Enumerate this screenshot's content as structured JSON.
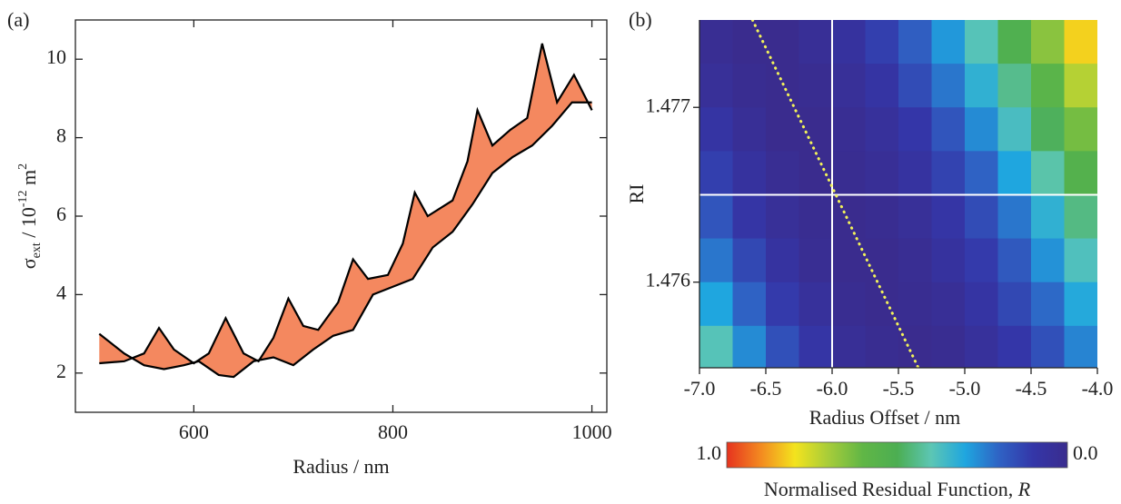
{
  "chart_data": [
    {
      "type": "line",
      "panel_label": "(a)",
      "xlabel": "Radius / nm",
      "ylabel": {
        "parts": [
          "σ",
          "ext",
          " / 10",
          "-12",
          " m",
          "2"
        ],
        "styles": [
          "normal",
          "sub",
          "normal",
          "sup",
          "normal",
          "sup"
        ]
      },
      "xlim": [
        481,
        1015
      ],
      "ylim": [
        1,
        11
      ],
      "xticks": [
        600,
        800,
        1000
      ],
      "yticks": [
        2,
        4,
        6,
        8,
        10
      ],
      "band_color": "#f0602a",
      "series": [
        {
          "color": "#000000",
          "x": [
            505,
            530,
            550,
            565,
            580,
            600,
            615,
            632,
            650,
            665,
            680,
            695,
            710,
            725,
            745,
            760,
            775,
            795,
            810,
            822,
            835,
            860,
            875,
            885,
            900,
            918,
            935,
            950,
            965,
            982,
            1000
          ],
          "values": [
            2.25,
            2.3,
            2.5,
            3.15,
            2.6,
            2.25,
            2.5,
            3.4,
            2.5,
            2.3,
            2.9,
            3.9,
            3.2,
            3.1,
            3.8,
            4.9,
            4.4,
            4.5,
            5.3,
            6.6,
            6.0,
            6.4,
            7.4,
            8.7,
            7.8,
            8.2,
            8.5,
            10.4,
            8.9,
            9.6,
            8.7
          ]
        },
        {
          "color": "#000000",
          "x": [
            505,
            530,
            550,
            570,
            590,
            605,
            625,
            640,
            660,
            680,
            700,
            720,
            740,
            760,
            780,
            800,
            820,
            840,
            860,
            880,
            900,
            920,
            940,
            960,
            980,
            1000
          ],
          "values": [
            3.0,
            2.5,
            2.2,
            2.1,
            2.2,
            2.3,
            1.95,
            1.9,
            2.3,
            2.4,
            2.2,
            2.6,
            2.95,
            3.1,
            4.0,
            4.2,
            4.4,
            5.2,
            5.6,
            6.3,
            7.1,
            7.5,
            7.8,
            8.3,
            8.9,
            8.9
          ]
        }
      ]
    },
    {
      "type": "heatmap",
      "panel_label": "(b)",
      "xlabel": "Radius Offset / nm",
      "ylabel": "RI",
      "xlim": [
        -7,
        -4
      ],
      "ylim": [
        1.47551,
        1.4775
      ],
      "xticks": [
        {
          "value": -7,
          "label": "-7.0"
        },
        {
          "value": -6.5,
          "label": "-6.5"
        },
        {
          "value": -6,
          "label": "-6.0"
        },
        {
          "value": -5.5,
          "label": "-5.5"
        },
        {
          "value": -5,
          "label": "-5.0"
        },
        {
          "value": -4.5,
          "label": "-4.5"
        },
        {
          "value": -4,
          "label": "-4.0"
        }
      ],
      "yticks": [
        1.477,
        1.476
      ],
      "x": [
        -6.875,
        -6.625,
        -6.375,
        -6.125,
        -5.875,
        -5.625,
        -5.375,
        -5.125,
        -4.875,
        -4.625,
        -4.375,
        -4.125
      ],
      "y": [
        1.477375,
        1.477125,
        1.476875,
        1.476625,
        1.476375,
        1.476125,
        1.475875,
        1.475625
      ],
      "z": [
        [
          0.02,
          0.0,
          0.0,
          0.03,
          0.06,
          0.12,
          0.19,
          0.28,
          0.39,
          0.52,
          0.66,
          0.82
        ],
        [
          0.04,
          0.01,
          0.0,
          0.01,
          0.04,
          0.08,
          0.15,
          0.23,
          0.33,
          0.44,
          0.57,
          0.72
        ],
        [
          0.08,
          0.03,
          0.0,
          0.0,
          0.02,
          0.05,
          0.1,
          0.17,
          0.26,
          0.37,
          0.49,
          0.63
        ],
        [
          0.12,
          0.06,
          0.02,
          0.0,
          0.01,
          0.03,
          0.07,
          0.13,
          0.2,
          0.3,
          0.41,
          0.54
        ],
        [
          0.17,
          0.09,
          0.04,
          0.01,
          0.0,
          0.01,
          0.04,
          0.09,
          0.15,
          0.23,
          0.33,
          0.45
        ],
        [
          0.23,
          0.14,
          0.07,
          0.02,
          0.0,
          0.0,
          0.02,
          0.06,
          0.11,
          0.18,
          0.27,
          0.38
        ],
        [
          0.3,
          0.2,
          0.11,
          0.05,
          0.01,
          0.0,
          0.01,
          0.03,
          0.08,
          0.14,
          0.21,
          0.31
        ],
        [
          0.39,
          0.26,
          0.16,
          0.09,
          0.03,
          0.01,
          0.0,
          0.01,
          0.05,
          0.1,
          0.16,
          0.25
        ]
      ],
      "clim": [
        0,
        1
      ],
      "colormap": [
        "#3a2c8e",
        "#3436a8",
        "#2f62c4",
        "#1fa6df",
        "#5cc6b4",
        "#4cae52",
        "#60b646",
        "#a6cc3a",
        "#f3e31e",
        "#f38a20",
        "#e6331f"
      ],
      "colorbar": {
        "ticks": [
          {
            "value": 1,
            "label": "1.0"
          },
          {
            "value": 0,
            "label": "0.0"
          }
        ],
        "label": "Normalised Residual Function, ",
        "label_symbol": "R"
      },
      "crosshair": {
        "x": -6,
        "y": 1.4765,
        "color": "#ffffff"
      },
      "fit_line": {
        "x": [
          -6.6,
          -5.35
        ],
        "y": [
          1.4775,
          1.47551
        ],
        "color": "#f2f25a"
      }
    }
  ]
}
